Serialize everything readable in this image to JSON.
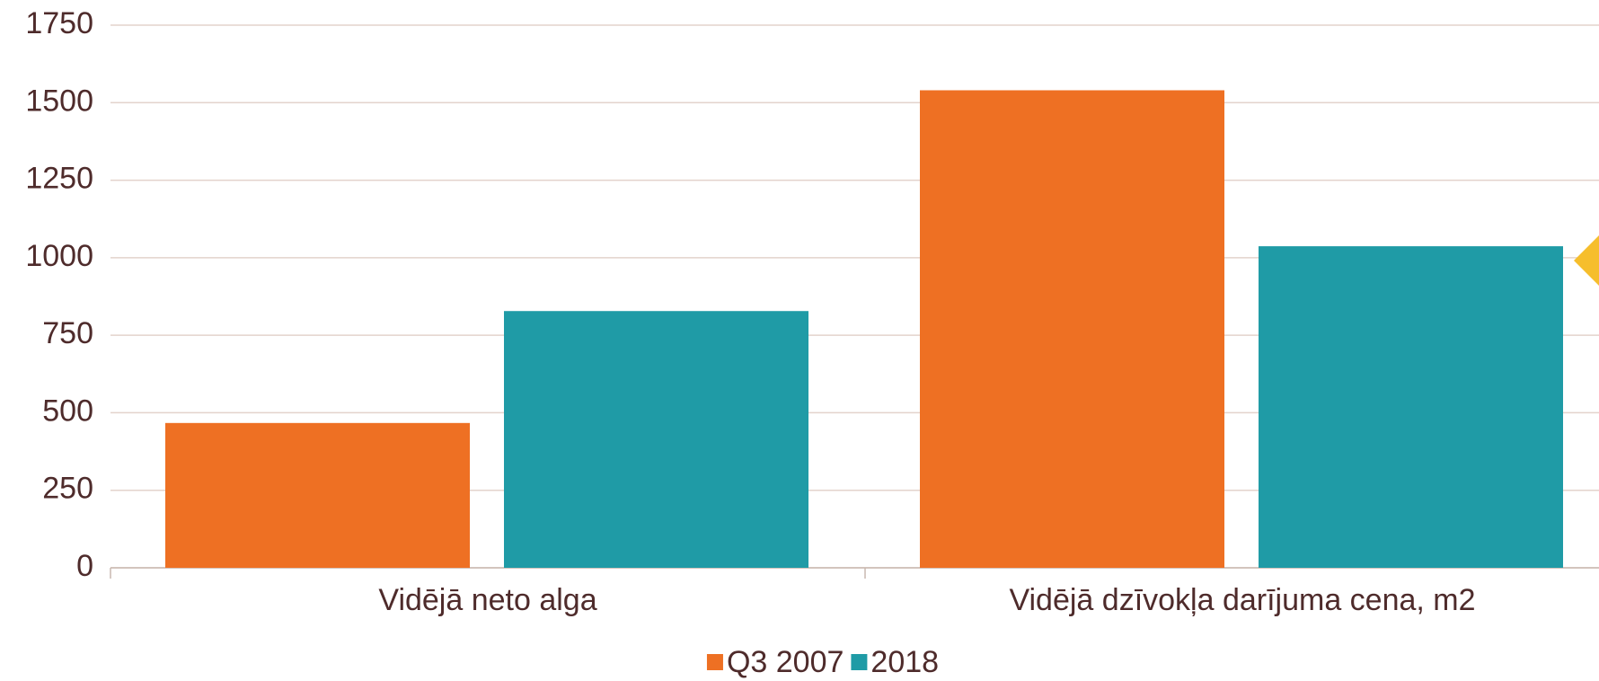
{
  "chart_data": {
    "type": "bar",
    "categories": [
      "Vidējā neto alga",
      "Vidējā dzīvokļa darījuma cena, m2"
    ],
    "series": [
      {
        "name": "Q3 2007",
        "color": "#ee7023",
        "values": [
          467,
          1540
        ]
      },
      {
        "name": "2018",
        "color": "#1f9ba6",
        "values": [
          828,
          1037
        ]
      }
    ],
    "ylim": [
      0,
      1750
    ],
    "yticks": [
      0,
      250,
      500,
      750,
      1000,
      1250,
      1500,
      1750
    ],
    "grid": true,
    "legend": "bottom"
  }
}
